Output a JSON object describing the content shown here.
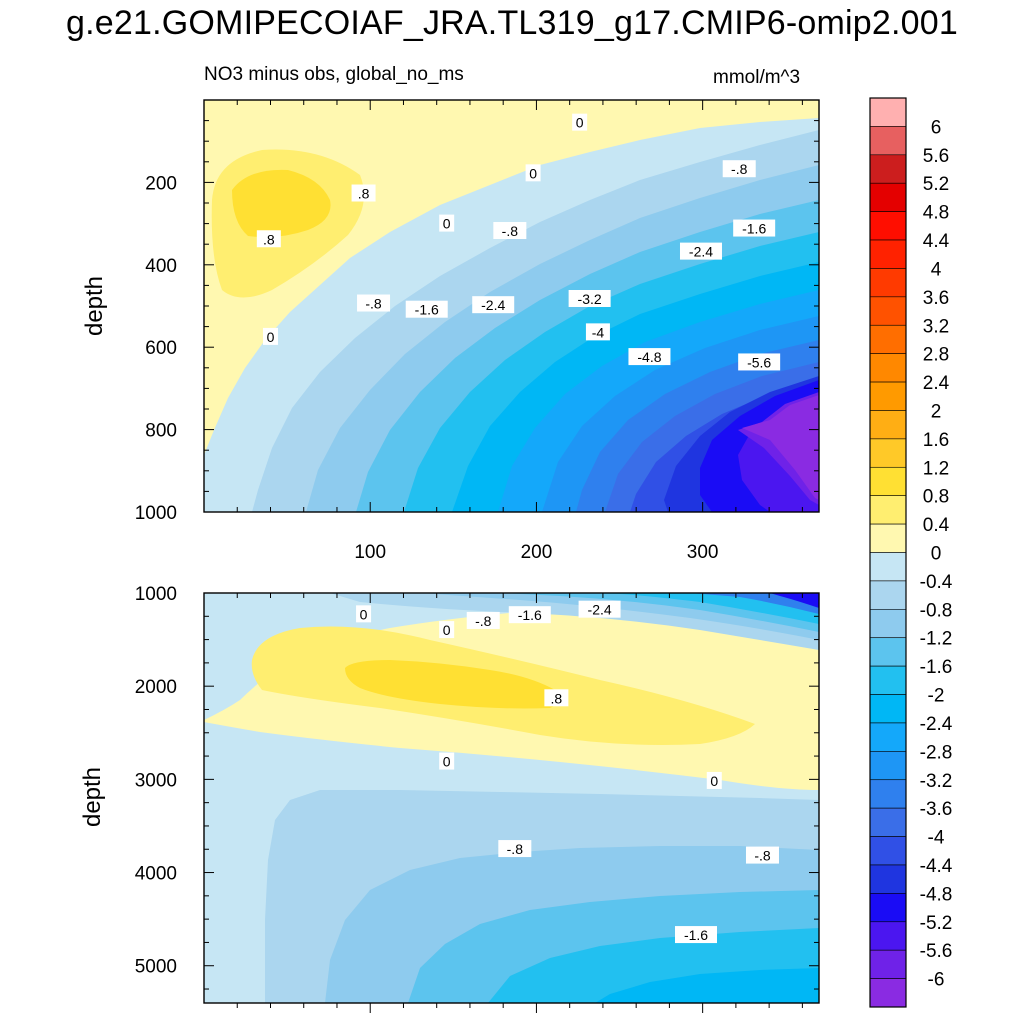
{
  "title": "g.e21.GOMIPECOIAF_JRA.TL319_g17.CMIP6-omip2.001",
  "subtitle": "NO3 minus obs, global_no_ms",
  "units": "mmol/m^3",
  "colors": {
    "levels": [
      -6,
      -5.6,
      -5.2,
      -4.8,
      -4.4,
      -4,
      -3.6,
      -3.2,
      -2.8,
      -2.4,
      -2,
      -1.6,
      -1.2,
      -0.8,
      -0.4,
      0,
      0.4,
      0.8,
      1.2,
      1.6,
      2,
      2.4,
      2.8,
      3.2,
      3.6,
      4,
      4.4,
      4.8,
      5.2,
      5.6,
      6
    ],
    "fills": [
      "#8a2be2",
      "#6f22e8",
      "#4b16f0",
      "#1a0cf5",
      "#1f35e0",
      "#3050e6",
      "#3a6ee8",
      "#2f80ee",
      "#1e96f5",
      "#14a8fa",
      "#00b7f5",
      "#22c0f0",
      "#5cc4ee",
      "#8ecbee",
      "#abd6ef",
      "#c6e6f4",
      "#fff8b0",
      "#ffee70",
      "#ffe033",
      "#ffc928",
      "#ffae14",
      "#ff9a00",
      "#ff8800",
      "#ff6e00",
      "#ff5200",
      "#ff3a00",
      "#ff2200",
      "#ff0e00",
      "#e40000",
      "#cc1e1e",
      "#e76060",
      "#ffb0b0"
    ]
  },
  "chart_data": [
    {
      "type": "contour",
      "panel": "upper",
      "xlabel": "",
      "ylabel": "depth",
      "xlim": [
        0,
        370
      ],
      "ylim": [
        1000,
        0
      ],
      "xticks": [
        100,
        200,
        300
      ],
      "yticks": [
        200,
        400,
        600,
        800,
        1000
      ],
      "contour_labels": [
        {
          "text": "0",
          "x": 226,
          "y": 55
        },
        {
          "text": "-.8",
          "x": 322,
          "y": 168
        },
        {
          "text": ".8",
          "x": 96,
          "y": 227
        },
        {
          "text": "0",
          "x": 146,
          "y": 300
        },
        {
          "text": "0",
          "x": 198,
          "y": 178
        },
        {
          "text": "-.8",
          "x": 184,
          "y": 318
        },
        {
          "text": "-1.6",
          "x": 331,
          "y": 312
        },
        {
          "text": ".8",
          "x": 39,
          "y": 338
        },
        {
          "text": "-2.4",
          "x": 299,
          "y": 368
        },
        {
          "text": "-.8",
          "x": 102,
          "y": 494
        },
        {
          "text": "-1.6",
          "x": 134,
          "y": 509
        },
        {
          "text": "-2.4",
          "x": 174,
          "y": 498
        },
        {
          "text": "-3.2",
          "x": 232,
          "y": 483
        },
        {
          "text": "0",
          "x": 40,
          "y": 575
        },
        {
          "text": "-4",
          "x": 237,
          "y": 564
        },
        {
          "text": "-4.8",
          "x": 268,
          "y": 624
        },
        {
          "text": "-5.6",
          "x": 334,
          "y": 637
        }
      ]
    },
    {
      "type": "contour",
      "panel": "lower",
      "xlabel": "",
      "ylabel": "depth",
      "xlim": [
        0,
        370
      ],
      "ylim": [
        1000,
        5400
      ],
      "yticks": [
        1000,
        2000,
        3000,
        4000,
        5000
      ],
      "contour_labels": [
        {
          "text": "0",
          "x": 96,
          "y": 1229
        },
        {
          "text": "0",
          "x": 146,
          "y": 1398
        },
        {
          "text": "-.8",
          "x": 168,
          "y": 1300
        },
        {
          "text": "-1.6",
          "x": 196,
          "y": 1238
        },
        {
          "text": "-2.4",
          "x": 238,
          "y": 1179
        },
        {
          "text": ".8",
          "x": 212,
          "y": 2130
        },
        {
          "text": "0",
          "x": 146,
          "y": 2809
        },
        {
          "text": "0",
          "x": 307,
          "y": 3017
        },
        {
          "text": "-.8",
          "x": 187,
          "y": 3748
        },
        {
          "text": "-.8",
          "x": 336,
          "y": 3818
        },
        {
          "text": "-1.6",
          "x": 296,
          "y": 4671
        }
      ]
    }
  ],
  "colorbar": {
    "labels": [
      "6",
      "5.6",
      "5.2",
      "4.8",
      "4.4",
      "4",
      "3.6",
      "3.2",
      "2.8",
      "2.4",
      "2",
      "1.6",
      "1.2",
      "0.8",
      "0.4",
      "0",
      "-0.4",
      "-0.8",
      "-1.2",
      "-1.6",
      "-2",
      "-2.4",
      "-2.8",
      "-3.2",
      "-3.6",
      "-4",
      "-4.4",
      "-4.8",
      "-5.2",
      "-5.6",
      "-6"
    ]
  }
}
